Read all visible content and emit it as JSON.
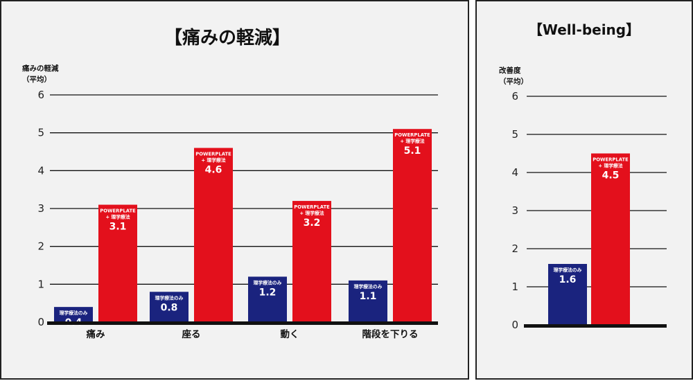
{
  "chart_data": [
    {
      "type": "bar",
      "title": "【痛みの軽減】",
      "ylabel": "痛みの軽減\n（平均）",
      "ylim": [
        0,
        6
      ],
      "yticks": [
        "0",
        "1",
        "2",
        "3",
        "4",
        "5",
        "6"
      ],
      "grid": true,
      "categories": [
        "痛み",
        "座る",
        "動く",
        "階段を下りる"
      ],
      "series": [
        {
          "name": "理学療法のみ",
          "color": "#1a237e",
          "values": [
            0.4,
            0.8,
            1.2,
            1.1
          ]
        },
        {
          "name": "POWERPLATE\n+ 理学療法",
          "color": "#e3101c",
          "values": [
            3.1,
            4.6,
            3.2,
            5.1
          ]
        }
      ]
    },
    {
      "type": "bar",
      "title": "【Well-being】",
      "ylabel": "改善度\n（平均）",
      "ylim": [
        0,
        6
      ],
      "yticks": [
        "0",
        "1",
        "2",
        "3",
        "4",
        "5",
        "6"
      ],
      "grid": true,
      "categories": [
        ""
      ],
      "series": [
        {
          "name": "理学療法のみ",
          "color": "#1a237e",
          "values": [
            1.6
          ]
        },
        {
          "name": "POWERPLATE\n+ 理学療法",
          "color": "#e3101c",
          "values": [
            4.5
          ]
        }
      ]
    }
  ]
}
